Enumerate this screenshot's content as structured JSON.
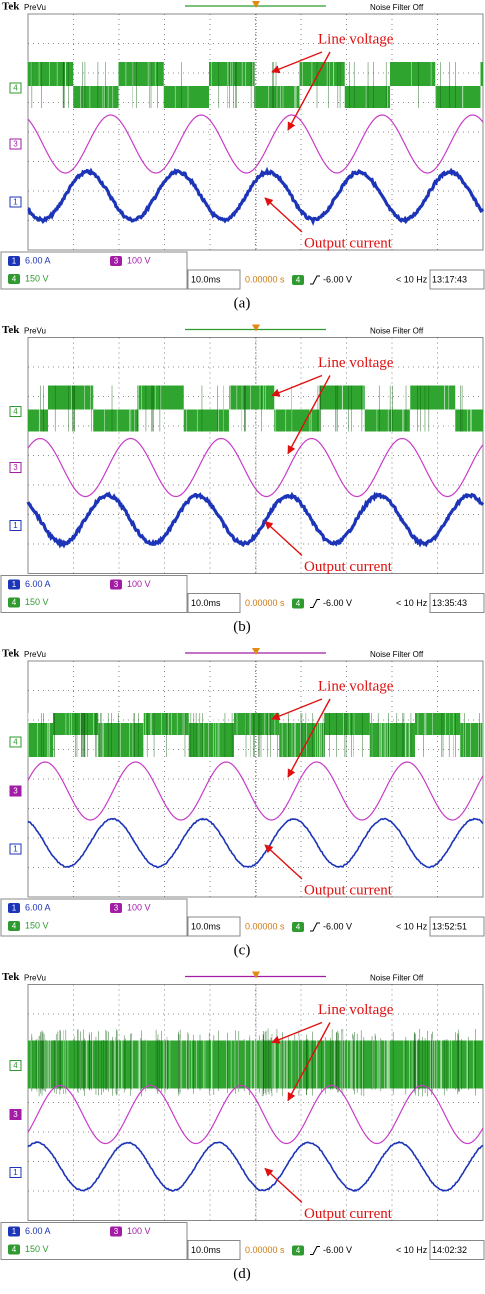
{
  "panels": [
    {
      "brand": "Tek",
      "mode": "PreVu",
      "filter": "Noise Filter Off",
      "annotations": [
        "Line voltage",
        "Output current"
      ],
      "markers": [
        "4",
        "3",
        "1"
      ],
      "channels": [
        {
          "id": "1",
          "scale": "6.00 A"
        },
        {
          "id": "3",
          "scale": "100 V"
        },
        {
          "id": "4",
          "scale": "150 V"
        }
      ],
      "timebase": "10.0ms",
      "position": "0.00000 s",
      "trigger_channel": "4",
      "trigger_level": "-6.00 V",
      "frequency": "< 10 Hz",
      "clock": "13:17:43",
      "caption": "(a)"
    },
    {
      "brand": "Tek",
      "mode": "PreVu",
      "filter": "Noise Filter Off",
      "annotations": [
        "Line voltage",
        "Output current"
      ],
      "markers": [
        "4",
        "3",
        "1"
      ],
      "channels": [
        {
          "id": "1",
          "scale": "6.00 A"
        },
        {
          "id": "3",
          "scale": "100 V"
        },
        {
          "id": "4",
          "scale": "150 V"
        }
      ],
      "timebase": "10.0ms",
      "position": "0.00000 s",
      "trigger_channel": "4",
      "trigger_level": "-6.00 V",
      "frequency": "< 10 Hz",
      "clock": "13:35:43",
      "caption": "(b)"
    },
    {
      "brand": "Tek",
      "mode": "PreVu",
      "filter": "Noise Filter Off",
      "annotations": [
        "Line voltage",
        "Output current"
      ],
      "markers": [
        "4",
        "3",
        "1"
      ],
      "channels": [
        {
          "id": "1",
          "scale": "6.00 A"
        },
        {
          "id": "3",
          "scale": "100 V"
        },
        {
          "id": "4",
          "scale": "150 V"
        }
      ],
      "timebase": "10.0ms",
      "position": "0.00000 s",
      "trigger_channel": "4",
      "trigger_level": "-6.00 V",
      "frequency": "< 10 Hz",
      "clock": "13:52:51",
      "caption": "(c)"
    },
    {
      "brand": "Tek",
      "mode": "PreVu",
      "filter": "Noise Filter Off",
      "annotations": [
        "Line voltage",
        "Output current"
      ],
      "markers": [
        "4",
        "3",
        "1"
      ],
      "channels": [
        {
          "id": "1",
          "scale": "6.00 A"
        },
        {
          "id": "3",
          "scale": "100 V"
        },
        {
          "id": "4",
          "scale": "150 V"
        }
      ],
      "timebase": "10.0ms",
      "position": "0.00000 s",
      "trigger_channel": "4",
      "trigger_level": "-6.00 V",
      "frequency": "< 10 Hz",
      "clock": "14:02:32",
      "caption": "(d)"
    }
  ]
}
